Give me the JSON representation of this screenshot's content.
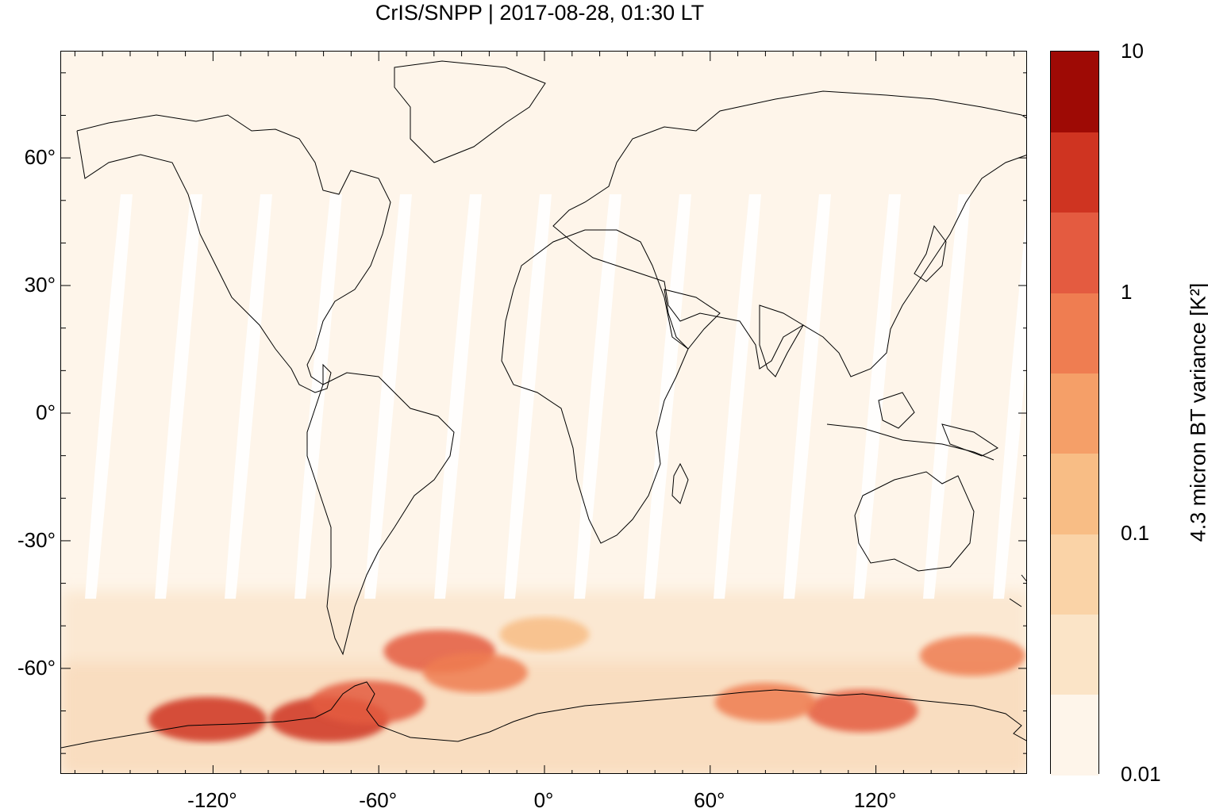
{
  "title": "CrIS/SNPP | 2017-08-28, 01:30 LT",
  "y_ticks": [
    {
      "value": 60,
      "label": "60°"
    },
    {
      "value": 30,
      "label": "30°"
    },
    {
      "value": 0,
      "label": "0°"
    },
    {
      "value": -30,
      "label": "-30°"
    },
    {
      "value": -60,
      "label": "-60°"
    }
  ],
  "x_ticks": [
    {
      "value": -120,
      "label": "-120°"
    },
    {
      "value": -60,
      "label": "-60°"
    },
    {
      "value": 0,
      "label": "0°"
    },
    {
      "value": 60,
      "label": "60°"
    },
    {
      "value": 120,
      "label": "120°"
    }
  ],
  "map_extent": {
    "lon": [
      -175,
      175
    ],
    "lat": [
      -85,
      85
    ]
  },
  "colorbar": {
    "title": "4.3 micron BT variance [K²]",
    "scale": "log",
    "range": [
      0.01,
      10
    ],
    "labels": [
      {
        "value": 10,
        "label": "10"
      },
      {
        "value": 1,
        "label": "1"
      },
      {
        "value": 0.1,
        "label": "0.1"
      },
      {
        "value": 0.01,
        "label": "0.01"
      }
    ],
    "colors": [
      "#fef5ea",
      "#fbe4c7",
      "#fad3a7",
      "#f8bd85",
      "#f59f68",
      "#ef7d51",
      "#e45b40",
      "#cf3421",
      "#9e0a05"
    ]
  },
  "anomalies": [
    {
      "lon": -122,
      "lat": -72,
      "value": 3
    },
    {
      "lon": -78,
      "lat": -72,
      "value": 3
    },
    {
      "lon": -64,
      "lat": -68,
      "value": 2
    },
    {
      "lon": -38,
      "lat": -56,
      "value": 1.5
    },
    {
      "lon": -25,
      "lat": -61,
      "value": 0.7
    },
    {
      "lon": 115,
      "lat": -70,
      "value": 1.5
    },
    {
      "lon": 155,
      "lat": -57,
      "value": 0.8
    },
    {
      "lon": 80,
      "lat": -68,
      "value": 0.5
    },
    {
      "lon": 0,
      "lat": -52,
      "value": 0.15
    }
  ]
}
